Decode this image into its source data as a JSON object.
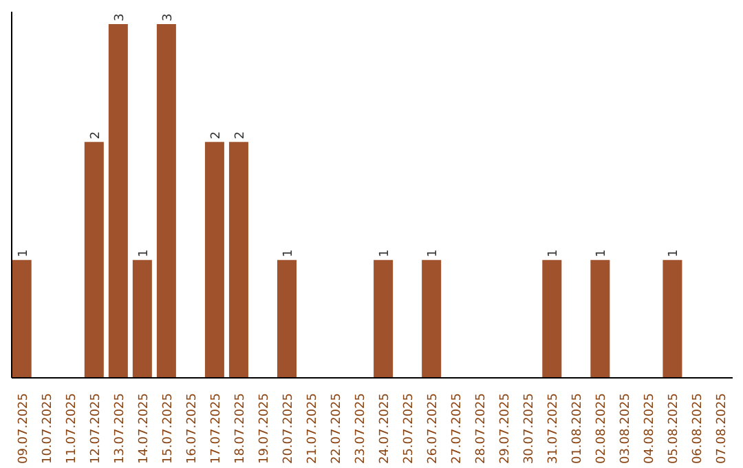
{
  "chart_data": {
    "type": "bar",
    "categories": [
      "09.07.2025",
      "10.07.2025",
      "11.07.2025",
      "12.07.2025",
      "13.07.2025",
      "14.07.2025",
      "15.07.2025",
      "16.07.2025",
      "17.07.2025",
      "18.07.2025",
      "19.07.2025",
      "20.07.2025",
      "21.07.2025",
      "22.07.2025",
      "23.07.2025",
      "24.07.2025",
      "25.07.2025",
      "26.07.2025",
      "27.07.2025",
      "28.07.2025",
      "29.07.2025",
      "30.07.2025",
      "31.07.2025",
      "01.08.2025",
      "02.08.2025",
      "03.08.2025",
      "04.08.2025",
      "05.08.2025",
      "06.08.2025",
      "07.08.2025"
    ],
    "values": [
      1,
      0,
      0,
      2,
      3,
      1,
      3,
      0,
      2,
      2,
      0,
      1,
      0,
      0,
      0,
      1,
      0,
      1,
      0,
      0,
      0,
      0,
      1,
      0,
      1,
      0,
      0,
      1,
      0,
      0
    ],
    "value_labels": [
      "1",
      null,
      null,
      "2",
      "3",
      "1",
      "3",
      null,
      "2",
      "2",
      null,
      "1",
      null,
      null,
      null,
      "1",
      null,
      "1",
      null,
      null,
      null,
      null,
      "1",
      null,
      "1",
      null,
      null,
      "1",
      null,
      null
    ],
    "color": "#a0522d",
    "grid": false
  }
}
